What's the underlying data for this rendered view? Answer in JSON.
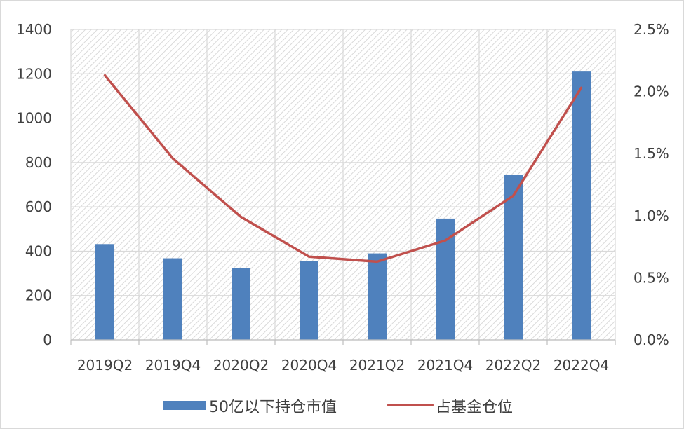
{
  "chart_data": {
    "type": "bar",
    "categories": [
      "2019Q2",
      "2019Q4",
      "2020Q2",
      "2020Q4",
      "2021Q2",
      "2021Q4",
      "2022Q2",
      "2022Q4"
    ],
    "series": [
      {
        "name": "50亿以下持仓市值",
        "type": "bar",
        "axis": "left",
        "color": "#4f81bd",
        "values": [
          432,
          368,
          325,
          354,
          390,
          547,
          745,
          1210
        ]
      },
      {
        "name": "占基金仓位",
        "type": "line",
        "axis": "right",
        "color": "#c0504d",
        "values": [
          0.0213,
          0.0146,
          0.0099,
          0.0067,
          0.0063,
          0.008,
          0.0116,
          0.0203
        ]
      }
    ],
    "y_left": {
      "lim": [
        0,
        1400
      ],
      "ticks": [
        0,
        200,
        400,
        600,
        800,
        1000,
        1200,
        1400
      ],
      "tick_labels": [
        "0",
        "200",
        "400",
        "600",
        "800",
        "1000",
        "1200",
        "1400"
      ]
    },
    "y_right": {
      "lim": [
        0,
        0.025
      ],
      "ticks": [
        0,
        0.005,
        0.01,
        0.015,
        0.02,
        0.025
      ],
      "tick_labels": [
        "0.0%",
        "0.5%",
        "1.0%",
        "1.5%",
        "2.0%",
        "2.5%"
      ]
    },
    "grid": true,
    "legend_position": "bottom"
  }
}
